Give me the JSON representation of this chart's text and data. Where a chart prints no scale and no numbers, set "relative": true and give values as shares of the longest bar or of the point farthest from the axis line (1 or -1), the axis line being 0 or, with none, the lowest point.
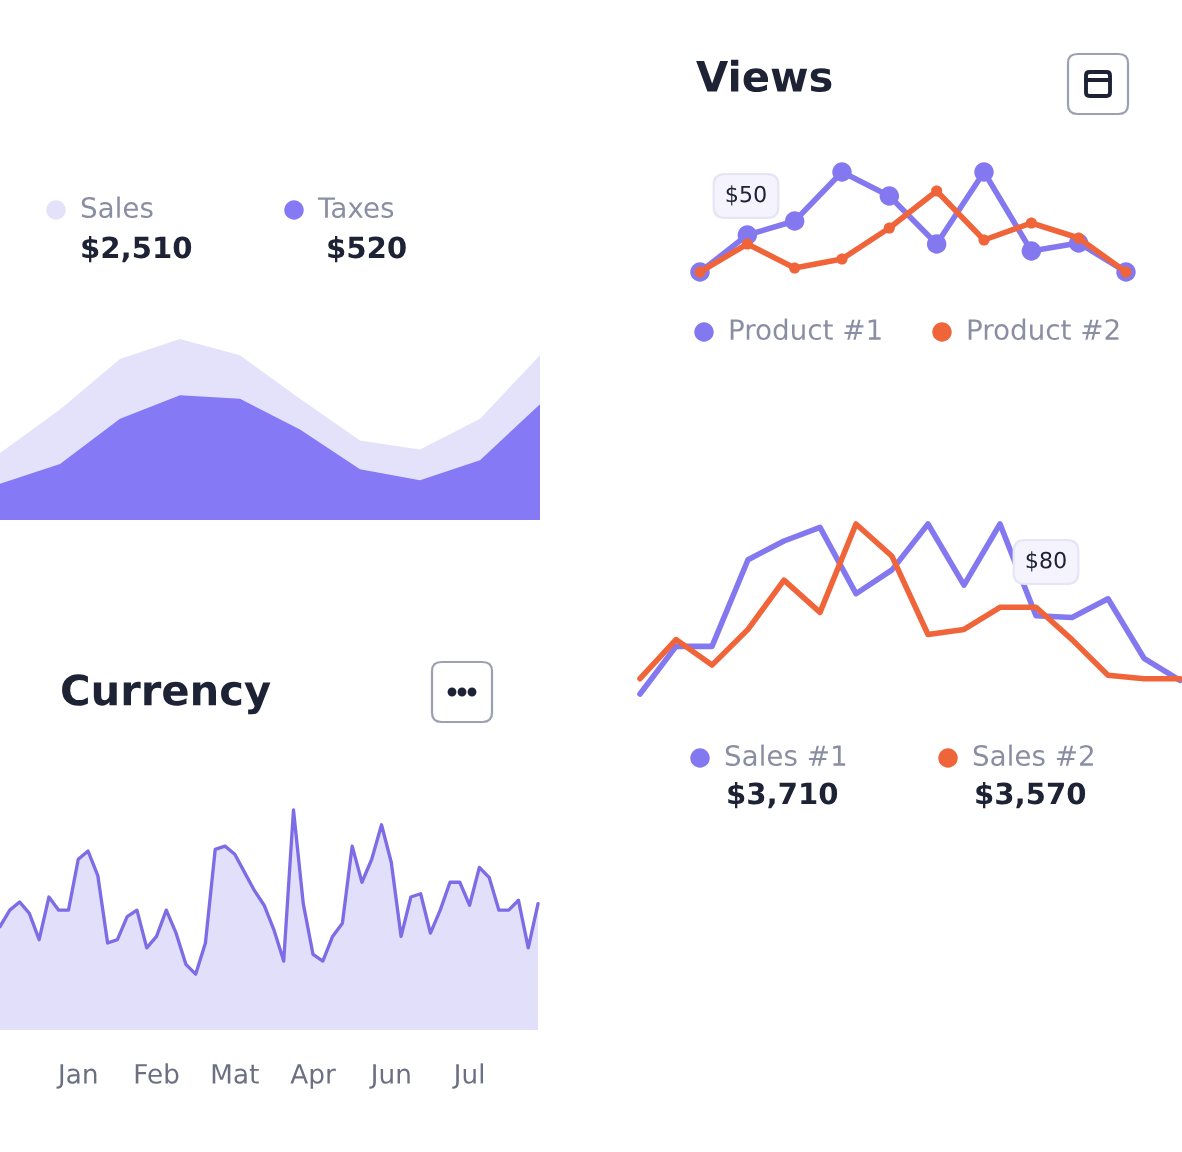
{
  "chart_data": [
    {
      "type": "area",
      "relative": true,
      "legend": "top",
      "tick_labels": false,
      "grid": false,
      "categories": [
        null,
        null,
        null,
        null,
        null,
        null,
        null,
        null,
        null,
        null
      ],
      "series": [
        {
          "name": "Sales",
          "color": "#e4e2fb",
          "values": [
            0.37,
            0.61,
            0.89,
            1,
            0.91,
            0.67,
            0.44,
            0.39,
            0.56,
            0.91
          ]
        },
        {
          "name": "Taxes",
          "color": "#8579f5",
          "values": [
            0.2,
            0.31,
            0.56,
            0.69,
            0.67,
            0.5,
            0.28,
            0.22,
            0.33,
            0.64
          ]
        }
      ],
      "annotations": [
        "$2,510",
        "$520"
      ]
    },
    {
      "type": "line",
      "title": "Views",
      "relative": true,
      "legend": "bottom",
      "tick_labels": false,
      "grid": false,
      "marker": "circle",
      "categories": [
        null,
        null,
        null,
        null,
        null,
        null,
        null,
        null,
        null,
        null
      ],
      "series": [
        {
          "name": "Product #1",
          "color": "#8478f0",
          "values": [
            0,
            0.37,
            0.51,
            1,
            0.76,
            0.28,
            1,
            0.21,
            0.29,
            0
          ]
        },
        {
          "name": "Product #2",
          "color": "#f0643a",
          "values": [
            0,
            0.28,
            0.04,
            0.13,
            0.44,
            0.81,
            0.32,
            0.49,
            0.34,
            0
          ]
        }
      ],
      "annotations": [
        "$50"
      ]
    },
    {
      "type": "area",
      "title": "Currency",
      "relative": true,
      "tick_labels": "x",
      "grid": false,
      "categories": [
        null,
        null,
        null,
        null,
        null,
        null,
        null,
        null,
        "Jan",
        null,
        null,
        null,
        null,
        null,
        null,
        null,
        "Feb",
        null,
        null,
        null,
        null,
        null,
        null,
        null,
        "Mat",
        null,
        null,
        null,
        null,
        null,
        null,
        null,
        "Apr",
        null,
        null,
        null,
        null,
        null,
        null,
        null,
        "Jun",
        null,
        null,
        null,
        null,
        null,
        null,
        null,
        "Jul",
        null,
        null,
        null,
        null,
        null,
        null,
        null
      ],
      "series": [
        {
          "color": "#7d6ce6",
          "values": [
            0.29,
            0.39,
            0.44,
            0.37,
            0.21,
            0.47,
            0.39,
            0.39,
            0.7,
            0.75,
            0.6,
            0.19,
            0.21,
            0.35,
            0.39,
            0.16,
            0.23,
            0.39,
            0.25,
            0.06,
            0,
            0.19,
            0.76,
            0.78,
            0.73,
            0.62,
            0.51,
            0.42,
            0.27,
            0.08,
            1,
            0.43,
            0.12,
            0.08,
            0.23,
            0.31,
            0.78,
            0.56,
            0.7,
            0.91,
            0.68,
            0.23,
            0.47,
            0.49,
            0.25,
            0.39,
            0.56,
            0.56,
            0.42,
            0.65,
            0.59,
            0.39,
            0.39,
            0.45,
            0.16,
            0.43
          ]
        }
      ]
    },
    {
      "type": "line",
      "relative": true,
      "legend": "bottom",
      "tick_labels": false,
      "grid": false,
      "categories": [
        null,
        null,
        null,
        null,
        null,
        null,
        null,
        null,
        null,
        null,
        null,
        null,
        null,
        null,
        null,
        null
      ],
      "series": [
        {
          "name": "Sales #1",
          "color": "#8478f0",
          "values": [
            0,
            0.28,
            0.28,
            0.79,
            0.9,
            0.98,
            0.59,
            0.73,
            1,
            0.64,
            1,
            0.46,
            0.45,
            0.56,
            0.21,
            0.08
          ]
        },
        {
          "name": "Sales #2",
          "color": "#f0643a",
          "values": [
            0.09,
            0.32,
            0.17,
            0.38,
            0.67,
            0.48,
            1,
            0.81,
            0.35,
            0.38,
            0.51,
            0.51,
            0.32,
            0.11,
            0.09,
            0.09
          ]
        }
      ],
      "annotations": [
        "$3,710",
        "$3,570",
        "$80"
      ]
    }
  ]
}
